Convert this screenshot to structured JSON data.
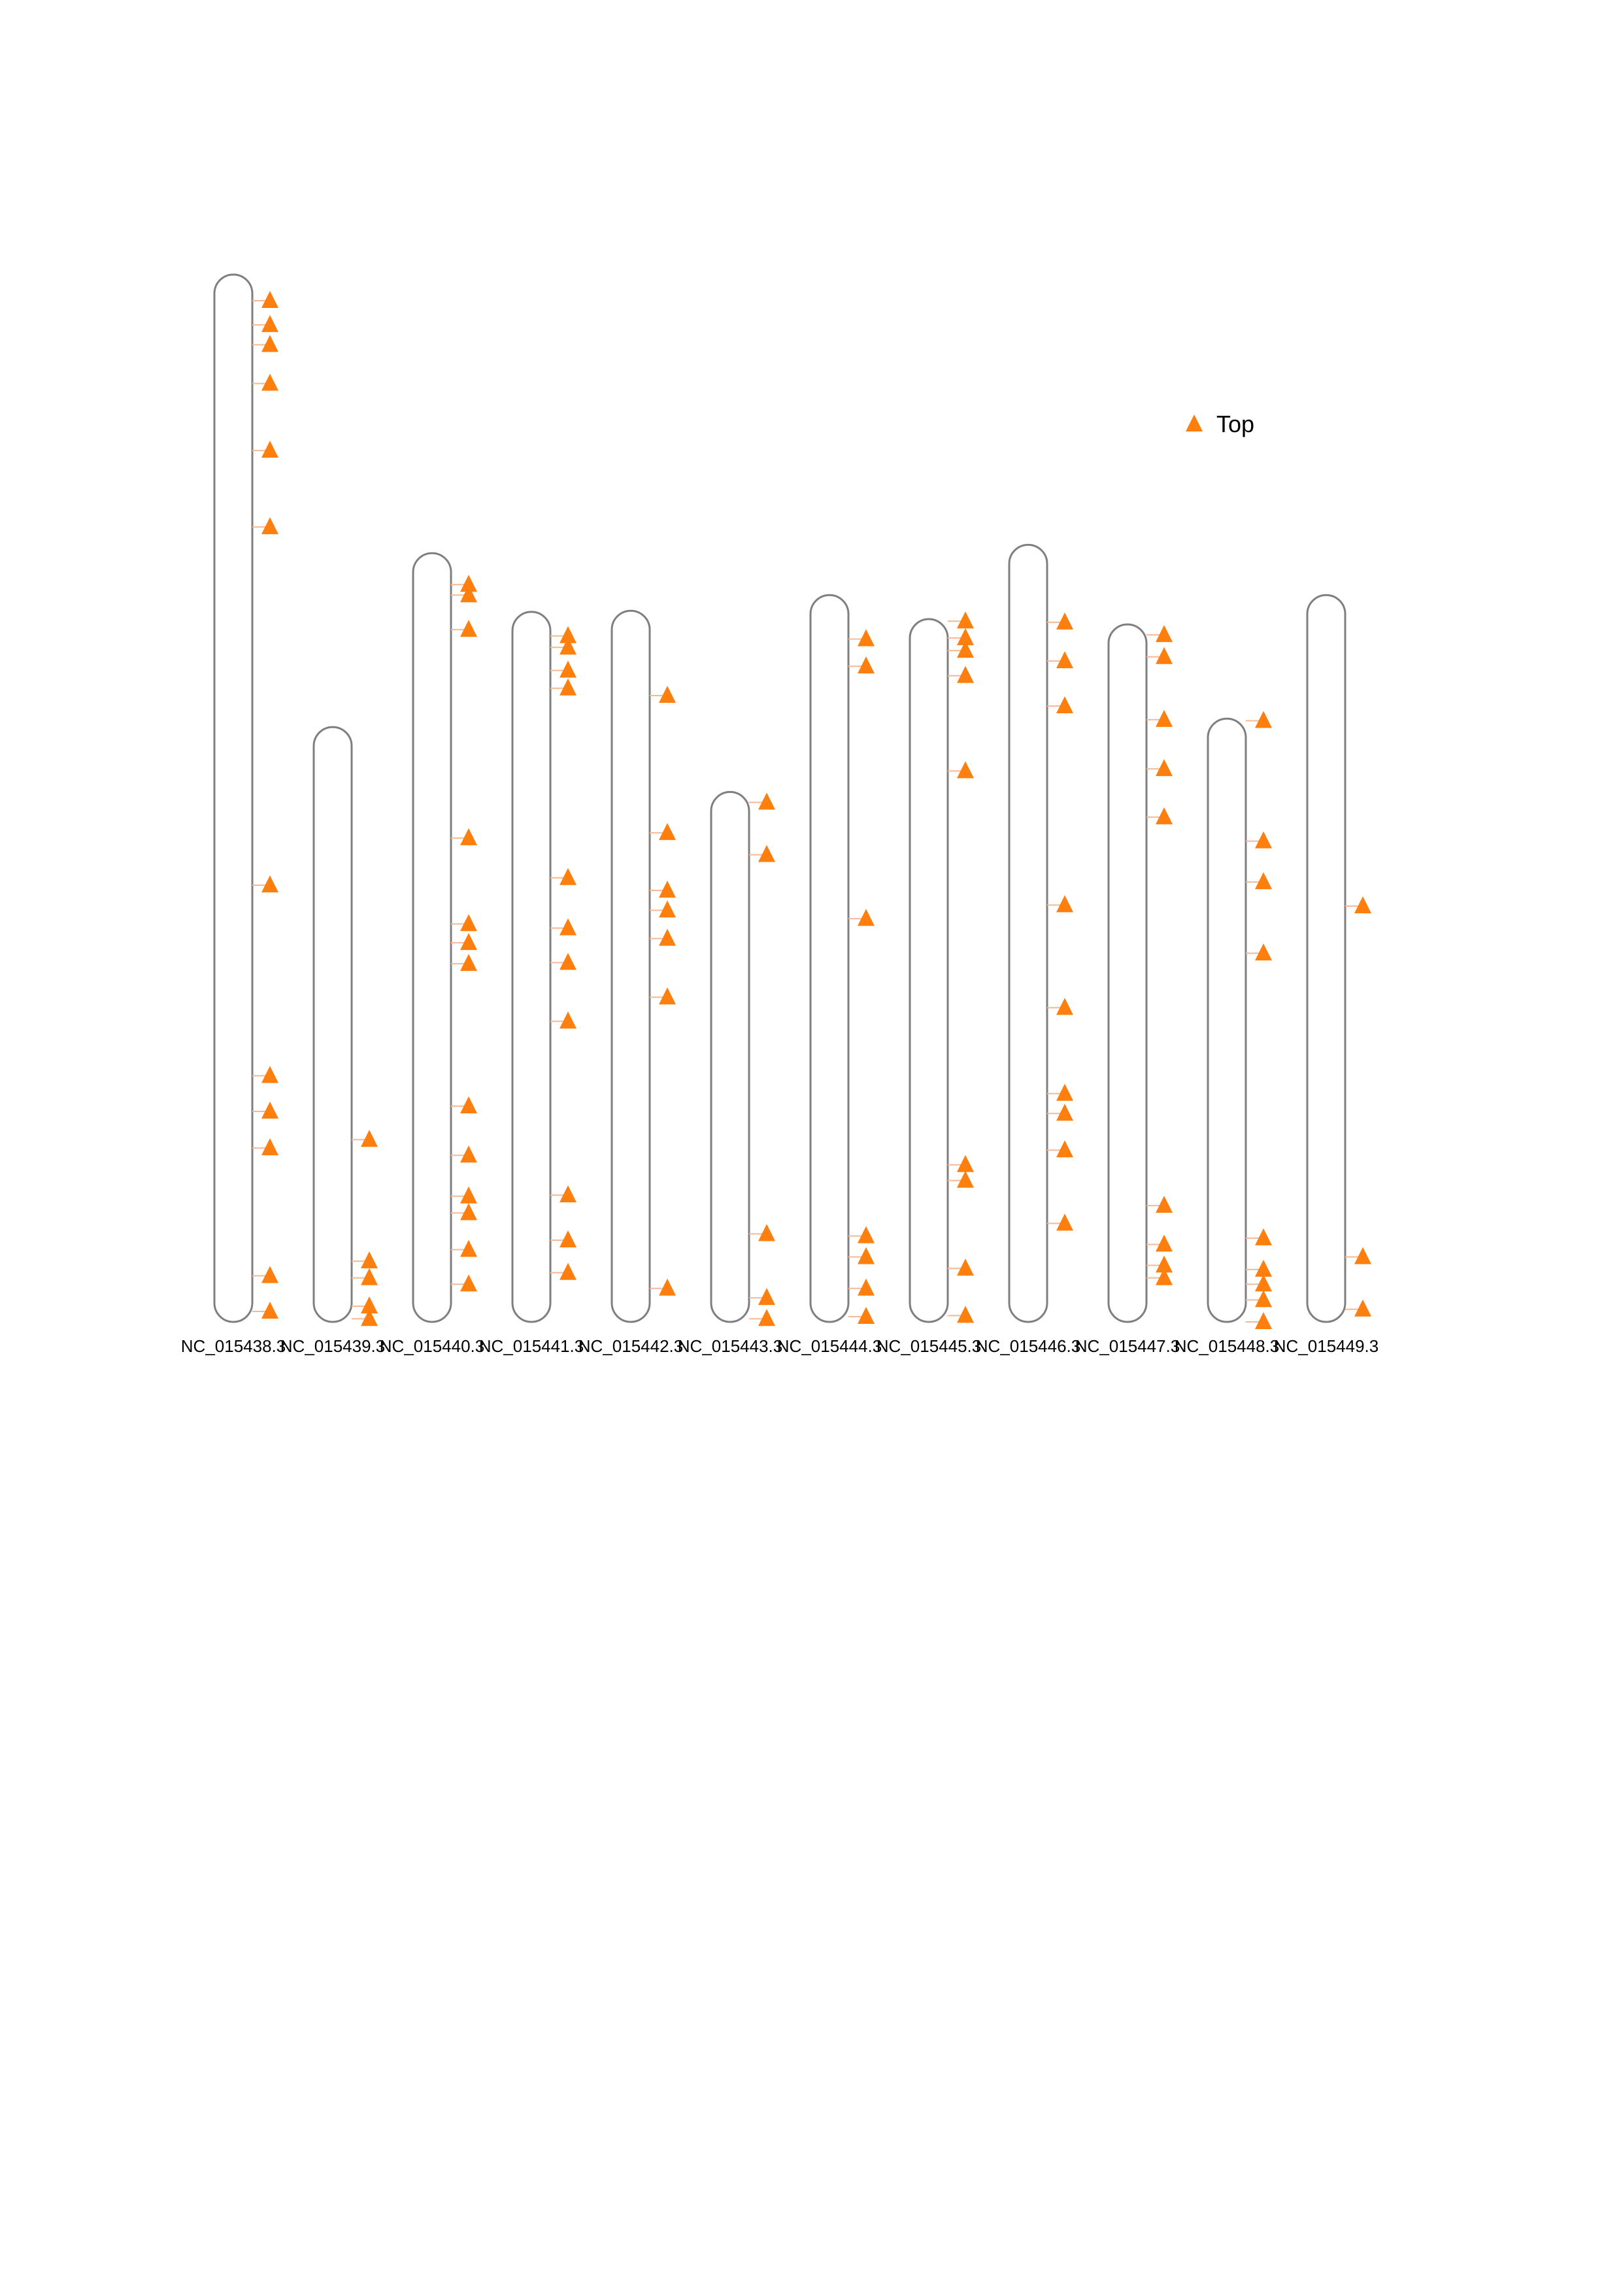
{
  "chart_data": {
    "type": "scatter",
    "title": "",
    "xlabel": "",
    "ylabel": "",
    "grid": false,
    "legend": {
      "placement": "top-right",
      "entries": [
        {
          "label": "Top",
          "marker": "triangle",
          "color": "#ff7f0e"
        }
      ]
    },
    "chromosomes": [
      {
        "name": "NC_015438.3",
        "length": 100
      },
      {
        "name": "NC_015439.3",
        "length": 56.8
      },
      {
        "name": "NC_015440.3",
        "length": 73.4
      },
      {
        "name": "NC_015441.3",
        "length": 67.8
      },
      {
        "name": "NC_015442.3",
        "length": 67.9
      },
      {
        "name": "NC_015443.3",
        "length": 50.6
      },
      {
        "name": "NC_015444.3",
        "length": 69.4
      },
      {
        "name": "NC_015445.3",
        "length": 67.1
      },
      {
        "name": "NC_015446.3",
        "length": 74.2
      },
      {
        "name": "NC_015447.3",
        "length": 66.6
      },
      {
        "name": "NC_015448.3",
        "length": 57.6
      },
      {
        "name": "NC_015449.3",
        "length": 69.4
      }
    ],
    "series": [
      {
        "name": "Top",
        "color": "#ff7f0e",
        "marker": "triangle",
        "points": [
          {
            "chrom": 0,
            "pos": 2.5
          },
          {
            "chrom": 0,
            "pos": 4.8
          },
          {
            "chrom": 0,
            "pos": 6.7
          },
          {
            "chrom": 0,
            "pos": 10.4
          },
          {
            "chrom": 0,
            "pos": 16.8
          },
          {
            "chrom": 0,
            "pos": 24.1
          },
          {
            "chrom": 0,
            "pos": 58.3
          },
          {
            "chrom": 0,
            "pos": 76.5
          },
          {
            "chrom": 0,
            "pos": 79.9
          },
          {
            "chrom": 0,
            "pos": 83.4
          },
          {
            "chrom": 0,
            "pos": 95.6
          },
          {
            "chrom": 0,
            "pos": 99.0
          },
          {
            "chrom": 1,
            "pos": 39.4
          },
          {
            "chrom": 1,
            "pos": 51.0
          },
          {
            "chrom": 1,
            "pos": 52.6
          },
          {
            "chrom": 1,
            "pos": 55.3
          },
          {
            "chrom": 1,
            "pos": 56.5
          },
          {
            "chrom": 2,
            "pos": 3.0
          },
          {
            "chrom": 2,
            "pos": 4.0
          },
          {
            "chrom": 2,
            "pos": 7.3
          },
          {
            "chrom": 2,
            "pos": 27.2
          },
          {
            "chrom": 2,
            "pos": 35.4
          },
          {
            "chrom": 2,
            "pos": 37.2
          },
          {
            "chrom": 2,
            "pos": 39.2
          },
          {
            "chrom": 2,
            "pos": 52.8
          },
          {
            "chrom": 2,
            "pos": 57.5
          },
          {
            "chrom": 2,
            "pos": 61.4
          },
          {
            "chrom": 2,
            "pos": 63.0
          },
          {
            "chrom": 2,
            "pos": 66.5
          },
          {
            "chrom": 2,
            "pos": 69.8
          },
          {
            "chrom": 3,
            "pos": 2.3
          },
          {
            "chrom": 3,
            "pos": 3.4
          },
          {
            "chrom": 3,
            "pos": 5.6
          },
          {
            "chrom": 3,
            "pos": 7.3
          },
          {
            "chrom": 3,
            "pos": 25.4
          },
          {
            "chrom": 3,
            "pos": 30.2
          },
          {
            "chrom": 3,
            "pos": 33.5
          },
          {
            "chrom": 3,
            "pos": 39.1
          },
          {
            "chrom": 3,
            "pos": 55.7
          },
          {
            "chrom": 3,
            "pos": 60.0
          },
          {
            "chrom": 3,
            "pos": 63.1
          },
          {
            "chrom": 4,
            "pos": 8.1
          },
          {
            "chrom": 4,
            "pos": 21.2
          },
          {
            "chrom": 4,
            "pos": 26.7
          },
          {
            "chrom": 4,
            "pos": 28.6
          },
          {
            "chrom": 4,
            "pos": 31.3
          },
          {
            "chrom": 4,
            "pos": 36.9
          },
          {
            "chrom": 4,
            "pos": 64.7
          },
          {
            "chrom": 5,
            "pos": 1.0
          },
          {
            "chrom": 5,
            "pos": 6.0
          },
          {
            "chrom": 5,
            "pos": 42.2
          },
          {
            "chrom": 5,
            "pos": 48.3
          },
          {
            "chrom": 5,
            "pos": 50.3
          },
          {
            "chrom": 6,
            "pos": 4.2
          },
          {
            "chrom": 6,
            "pos": 6.8
          },
          {
            "chrom": 6,
            "pos": 30.9
          },
          {
            "chrom": 6,
            "pos": 61.2
          },
          {
            "chrom": 6,
            "pos": 63.2
          },
          {
            "chrom": 6,
            "pos": 66.2
          },
          {
            "chrom": 6,
            "pos": 68.9
          },
          {
            "chrom": 7,
            "pos": 0.2
          },
          {
            "chrom": 7,
            "pos": 1.8
          },
          {
            "chrom": 7,
            "pos": 3.0
          },
          {
            "chrom": 7,
            "pos": 5.4
          },
          {
            "chrom": 7,
            "pos": 14.5
          },
          {
            "chrom": 7,
            "pos": 52.1
          },
          {
            "chrom": 7,
            "pos": 53.6
          },
          {
            "chrom": 7,
            "pos": 62.0
          },
          {
            "chrom": 7,
            "pos": 66.5
          },
          {
            "chrom": 8,
            "pos": 7.4
          },
          {
            "chrom": 8,
            "pos": 11.1
          },
          {
            "chrom": 8,
            "pos": 15.4
          },
          {
            "chrom": 8,
            "pos": 34.4
          },
          {
            "chrom": 8,
            "pos": 44.2
          },
          {
            "chrom": 8,
            "pos": 52.4
          },
          {
            "chrom": 8,
            "pos": 54.3
          },
          {
            "chrom": 8,
            "pos": 57.8
          },
          {
            "chrom": 8,
            "pos": 64.8
          },
          {
            "chrom": 9,
            "pos": 1.0
          },
          {
            "chrom": 9,
            "pos": 3.1
          },
          {
            "chrom": 9,
            "pos": 9.1
          },
          {
            "chrom": 9,
            "pos": 13.8
          },
          {
            "chrom": 9,
            "pos": 18.4
          },
          {
            "chrom": 9,
            "pos": 55.5
          },
          {
            "chrom": 9,
            "pos": 59.2
          },
          {
            "chrom": 9,
            "pos": 61.2
          },
          {
            "chrom": 9,
            "pos": 62.4
          },
          {
            "chrom": 10,
            "pos": 0.2
          },
          {
            "chrom": 10,
            "pos": 11.7
          },
          {
            "chrom": 10,
            "pos": 15.6
          },
          {
            "chrom": 10,
            "pos": 22.4
          },
          {
            "chrom": 10,
            "pos": 49.6
          },
          {
            "chrom": 10,
            "pos": 52.6
          },
          {
            "chrom": 10,
            "pos": 54.0
          },
          {
            "chrom": 10,
            "pos": 55.5
          },
          {
            "chrom": 10,
            "pos": 57.6
          },
          {
            "chrom": 11,
            "pos": 29.7
          },
          {
            "chrom": 11,
            "pos": 63.2
          },
          {
            "chrom": 11,
            "pos": 68.2
          }
        ]
      }
    ]
  }
}
